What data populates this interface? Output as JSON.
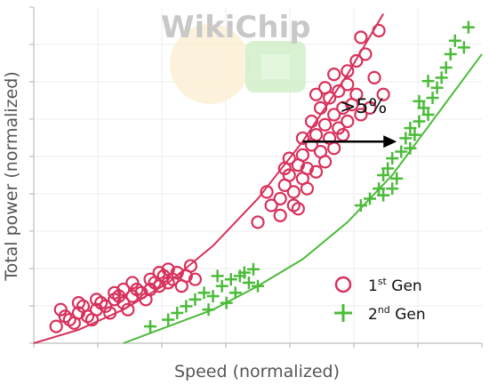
{
  "watermark": "WikiChip",
  "chart_data": {
    "type": "scatter",
    "title": "",
    "xlabel": "Speed (normalized)",
    "ylabel": "Total power (normalized)",
    "xlim": [
      0,
      1
    ],
    "ylim": [
      0,
      1
    ],
    "ticks_labeled": false,
    "grid": true,
    "legend_position": "bottom-right",
    "annotation": {
      "text": ">5%",
      "arrow_from": [
        0.6,
        0.6
      ],
      "arrow_to": [
        0.81,
        0.6
      ]
    },
    "series": [
      {
        "name": "1st Gen",
        "legend_base": "1",
        "legend_sup": "st",
        "legend_rest": " Gen",
        "marker": "circle",
        "color": "#d8315b",
        "points": [
          [
            0.05,
            0.05
          ],
          [
            0.08,
            0.07
          ],
          [
            0.1,
            0.09
          ],
          [
            0.12,
            0.08
          ],
          [
            0.14,
            0.1
          ],
          [
            0.16,
            0.11
          ],
          [
            0.18,
            0.13
          ],
          [
            0.2,
            0.12
          ],
          [
            0.22,
            0.14
          ],
          [
            0.24,
            0.15
          ],
          [
            0.26,
            0.16
          ],
          [
            0.28,
            0.17
          ],
          [
            0.3,
            0.18
          ],
          [
            0.07,
            0.08
          ],
          [
            0.11,
            0.11
          ],
          [
            0.15,
            0.12
          ],
          [
            0.19,
            0.14
          ],
          [
            0.23,
            0.16
          ],
          [
            0.27,
            0.18
          ],
          [
            0.29,
            0.2
          ],
          [
            0.31,
            0.19
          ],
          [
            0.25,
            0.13
          ],
          [
            0.13,
            0.07
          ],
          [
            0.09,
            0.06
          ],
          [
            0.17,
            0.09
          ],
          [
            0.21,
            0.1
          ],
          [
            0.32,
            0.21
          ],
          [
            0.34,
            0.2
          ],
          [
            0.35,
            0.23
          ],
          [
            0.33,
            0.17
          ],
          [
            0.06,
            0.1
          ],
          [
            0.1,
            0.12
          ],
          [
            0.2,
            0.16
          ],
          [
            0.26,
            0.19
          ],
          [
            0.3,
            0.22
          ],
          [
            0.18,
            0.15
          ],
          [
            0.14,
            0.13
          ],
          [
            0.22,
            0.18
          ],
          [
            0.28,
            0.21
          ],
          [
            0.36,
            0.19
          ],
          [
            0.55,
            0.43
          ],
          [
            0.56,
            0.47
          ],
          [
            0.57,
            0.5
          ],
          [
            0.58,
            0.45
          ],
          [
            0.59,
            0.53
          ],
          [
            0.6,
            0.56
          ],
          [
            0.61,
            0.52
          ],
          [
            0.62,
            0.59
          ],
          [
            0.63,
            0.62
          ],
          [
            0.64,
            0.57
          ],
          [
            0.65,
            0.65
          ],
          [
            0.66,
            0.61
          ],
          [
            0.67,
            0.68
          ],
          [
            0.68,
            0.64
          ],
          [
            0.69,
            0.7
          ],
          [
            0.7,
            0.66
          ],
          [
            0.62,
            0.66
          ],
          [
            0.6,
            0.49
          ],
          [
            0.58,
            0.41
          ],
          [
            0.57,
            0.55
          ],
          [
            0.64,
            0.7
          ],
          [
            0.66,
            0.73
          ],
          [
            0.68,
            0.75
          ],
          [
            0.7,
            0.77
          ],
          [
            0.72,
            0.74
          ],
          [
            0.71,
            0.71
          ],
          [
            0.73,
            0.68
          ],
          [
            0.67,
            0.58
          ],
          [
            0.63,
            0.51
          ],
          [
            0.61,
            0.46
          ],
          [
            0.59,
            0.4
          ],
          [
            0.65,
            0.54
          ],
          [
            0.69,
            0.62
          ],
          [
            0.7,
            0.81
          ],
          [
            0.72,
            0.84
          ],
          [
            0.74,
            0.86
          ],
          [
            0.76,
            0.79
          ],
          [
            0.73,
            0.91
          ],
          [
            0.77,
            0.93
          ],
          [
            0.78,
            0.74
          ],
          [
            0.75,
            0.7
          ],
          [
            0.56,
            0.52
          ],
          [
            0.55,
            0.38
          ],
          [
            0.52,
            0.45
          ],
          [
            0.5,
            0.36
          ],
          [
            0.65,
            0.76
          ],
          [
            0.67,
            0.8
          ],
          [
            0.63,
            0.74
          ],
          [
            0.53,
            0.41
          ],
          [
            0.6,
            0.61
          ]
        ]
      },
      {
        "name": "2nd Gen",
        "legend_base": "2",
        "legend_sup": "nd",
        "legend_rest": " Gen",
        "marker": "plus",
        "color": "#4cbb3a",
        "points": [
          [
            0.26,
            0.05
          ],
          [
            0.3,
            0.07
          ],
          [
            0.32,
            0.09
          ],
          [
            0.34,
            0.11
          ],
          [
            0.36,
            0.13
          ],
          [
            0.38,
            0.15
          ],
          [
            0.4,
            0.14
          ],
          [
            0.42,
            0.17
          ],
          [
            0.44,
            0.19
          ],
          [
            0.46,
            0.2
          ],
          [
            0.48,
            0.18
          ],
          [
            0.43,
            0.12
          ],
          [
            0.39,
            0.1
          ],
          [
            0.45,
            0.15
          ],
          [
            0.47,
            0.21
          ],
          [
            0.41,
            0.2
          ],
          [
            0.49,
            0.22
          ],
          [
            0.5,
            0.17
          ],
          [
            0.73,
            0.41
          ],
          [
            0.75,
            0.43
          ],
          [
            0.77,
            0.46
          ],
          [
            0.78,
            0.44
          ],
          [
            0.79,
            0.52
          ],
          [
            0.8,
            0.55
          ],
          [
            0.82,
            0.57
          ],
          [
            0.83,
            0.61
          ],
          [
            0.84,
            0.64
          ],
          [
            0.85,
            0.62
          ],
          [
            0.86,
            0.66
          ],
          [
            0.87,
            0.7
          ],
          [
            0.88,
            0.68
          ],
          [
            0.89,
            0.73
          ],
          [
            0.9,
            0.76
          ],
          [
            0.81,
            0.49
          ],
          [
            0.8,
            0.46
          ],
          [
            0.86,
            0.72
          ],
          [
            0.91,
            0.79
          ],
          [
            0.93,
            0.86
          ],
          [
            0.94,
            0.9
          ],
          [
            0.92,
            0.82
          ],
          [
            0.96,
            0.88
          ],
          [
            0.97,
            0.94
          ],
          [
            0.88,
            0.78
          ],
          [
            0.84,
            0.58
          ],
          [
            0.78,
            0.5
          ]
        ]
      }
    ],
    "fit_curves": [
      {
        "series": "1st Gen",
        "color": "#d8315b",
        "x": [
          0,
          0.1,
          0.2,
          0.3,
          0.4,
          0.5,
          0.6,
          0.7,
          0.78
        ],
        "y": [
          0.0,
          0.04,
          0.1,
          0.18,
          0.29,
          0.43,
          0.6,
          0.8,
          0.98
        ]
      },
      {
        "series": "2nd Gen",
        "color": "#4cbb3a",
        "x": [
          0.2,
          0.3,
          0.4,
          0.5,
          0.6,
          0.7,
          0.8,
          0.9,
          1.0
        ],
        "y": [
          0.0,
          0.05,
          0.1,
          0.17,
          0.25,
          0.36,
          0.5,
          0.68,
          0.86
        ]
      }
    ]
  }
}
